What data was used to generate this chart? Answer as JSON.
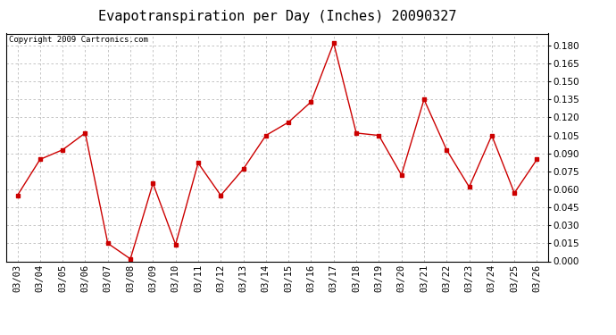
{
  "title": "Evapotranspiration per Day (Inches) 20090327",
  "copyright_text": "Copyright 2009 Cartronics.com",
  "dates": [
    "03/03",
    "03/04",
    "03/05",
    "03/06",
    "03/07",
    "03/08",
    "03/09",
    "03/10",
    "03/11",
    "03/12",
    "03/13",
    "03/14",
    "03/15",
    "03/16",
    "03/17",
    "03/18",
    "03/19",
    "03/20",
    "03/21",
    "03/22",
    "03/23",
    "03/24",
    "03/25",
    "03/26"
  ],
  "values": [
    0.055,
    0.085,
    0.093,
    0.107,
    0.015,
    0.002,
    0.065,
    0.014,
    0.082,
    0.055,
    0.077,
    0.105,
    0.116,
    0.133,
    0.182,
    0.107,
    0.105,
    0.072,
    0.135,
    0.093,
    0.062,
    0.105,
    0.057,
    0.085
  ],
  "line_color": "#cc0000",
  "marker": "s",
  "marker_size": 2.5,
  "marker_color": "#cc0000",
  "bg_color": "#ffffff",
  "grid_color": "#bbbbbb",
  "ylim": [
    0.0,
    0.19
  ],
  "yticks": [
    0.0,
    0.015,
    0.03,
    0.045,
    0.06,
    0.075,
    0.09,
    0.105,
    0.12,
    0.135,
    0.15,
    0.165,
    0.18
  ],
  "title_fontsize": 11,
  "copyright_fontsize": 6.5,
  "tick_fontsize": 7.5
}
